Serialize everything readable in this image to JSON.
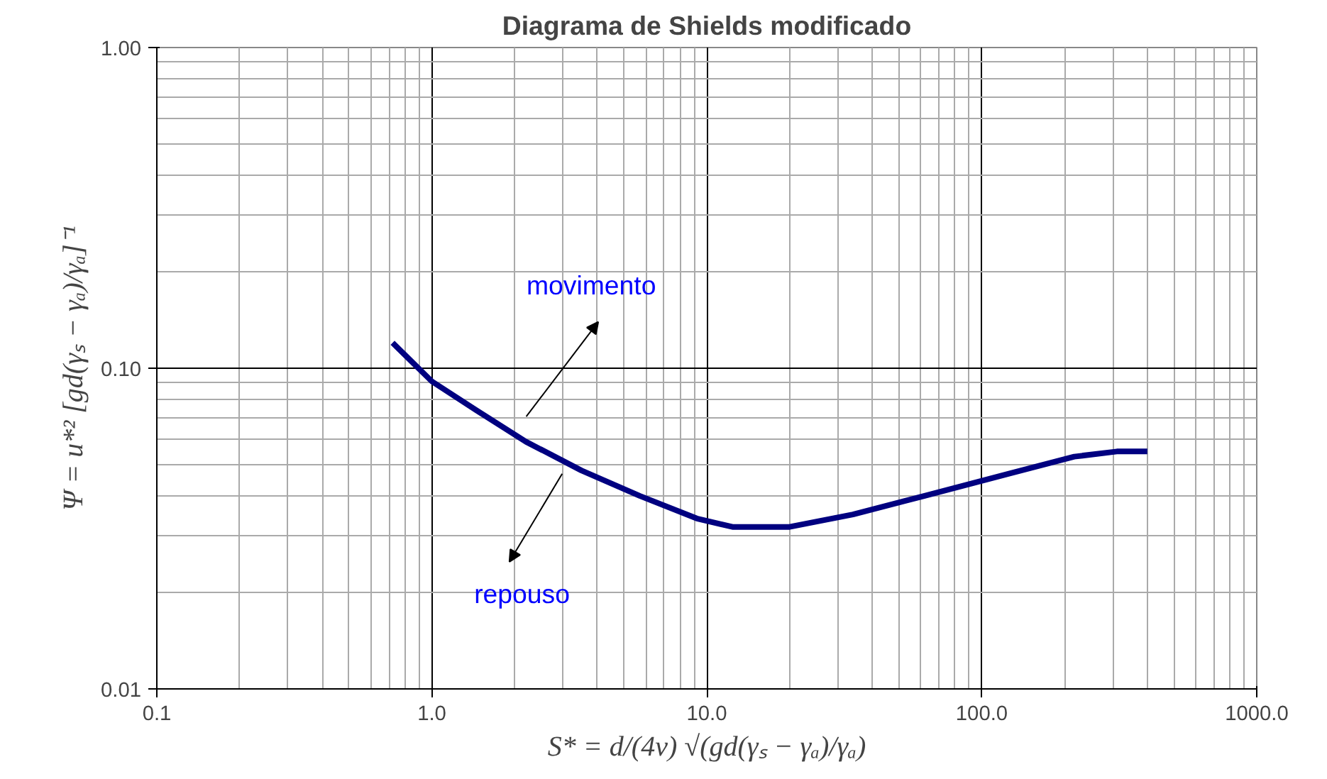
{
  "chart_data": {
    "type": "line",
    "title": "Diagrama de Shields modificado",
    "xlabel": "S* = d/(4ν) √(gd(γₛ − γₐ)/γₐ)",
    "ylabel": "Ψ = u*² [gd(γₛ − γₐ)/γₐ]⁻¹",
    "log": "xy",
    "grid": true,
    "marker": "none",
    "line_style": "solid",
    "xlim": [
      0.1,
      1000
    ],
    "ylim": [
      0.01,
      1
    ],
    "xticks": [
      {
        "value": 0.1,
        "label": "0.1"
      },
      {
        "value": 1,
        "label": "1.0"
      },
      {
        "value": 10,
        "label": "10.0"
      },
      {
        "value": 100,
        "label": "100.0"
      },
      {
        "value": 1000,
        "label": "1000.0"
      }
    ],
    "yticks": [
      {
        "value": 0.01,
        "label": "0.01"
      },
      {
        "value": 0.1,
        "label": "0.10"
      },
      {
        "value": 1,
        "label": "1.00"
      }
    ],
    "annotations": [
      "movimento",
      "repouso"
    ],
    "series": [
      {
        "color": "#000080",
        "x": [
          0.72,
          1.0,
          1.45,
          2.2,
          3.5,
          5.7,
          9.2,
          12.4,
          17,
          20,
          34,
          62,
          127,
          217,
          310,
          400
        ],
        "values": [
          0.12,
          0.091,
          0.074,
          0.059,
          0.048,
          0.04,
          0.034,
          0.032,
          0.032,
          0.032,
          0.035,
          0.04,
          0.047,
          0.053,
          0.055,
          0.055
        ]
      }
    ]
  }
}
